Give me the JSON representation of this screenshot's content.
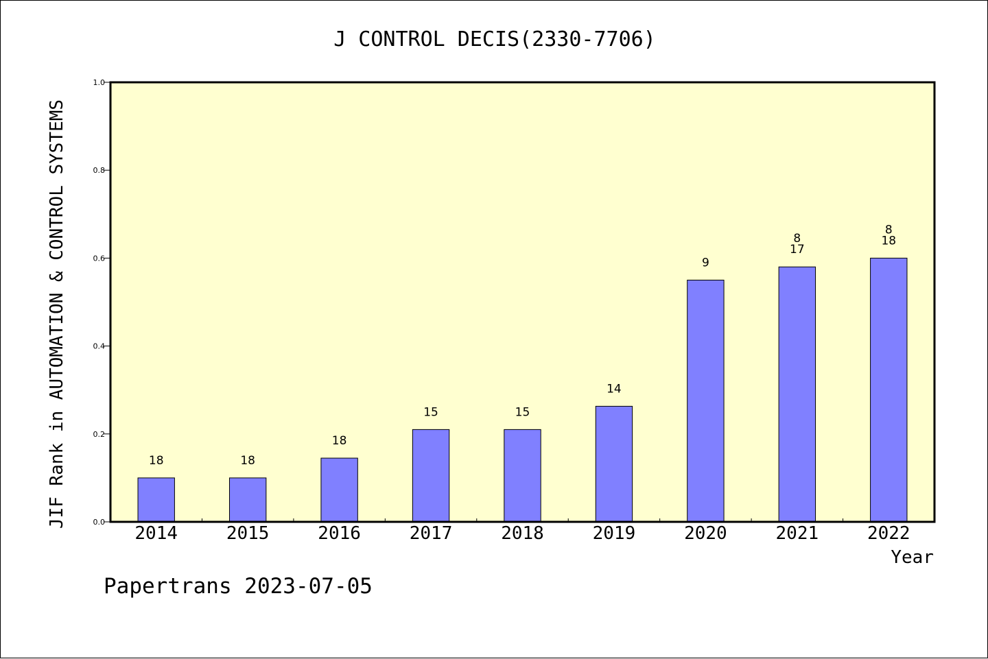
{
  "colors": {
    "plot_background": "#ffffd0",
    "bar_fill": "#8080ff",
    "bar_stroke": "#000000",
    "axis": "#000000"
  },
  "footer": "Papertrans 2023-07-05",
  "chart_data": {
    "type": "bar",
    "title": "J CONTROL DECIS(2330-7706)",
    "xlabel": "Year",
    "ylabel": "JIF Rank in AUTOMATION & CONTROL SYSTEMS",
    "categories": [
      "2014",
      "2015",
      "2016",
      "2017",
      "2018",
      "2019",
      "2020",
      "2021",
      "2022"
    ],
    "values": [
      0.1,
      0.1,
      0.145,
      0.21,
      0.21,
      0.263,
      0.55,
      0.58,
      0.6
    ],
    "bar_labels": [
      [
        "18"
      ],
      [
        "18"
      ],
      [
        "18"
      ],
      [
        "15"
      ],
      [
        "15"
      ],
      [
        "14"
      ],
      [
        "9"
      ],
      [
        "8",
        "17"
      ],
      [
        "8",
        "18"
      ]
    ],
    "ylim": [
      0.0,
      1.0
    ],
    "yticks": [
      "0.0",
      "0.2",
      "0.4",
      "0.6",
      "0.8",
      "1.0"
    ],
    "ytick_values": [
      0.0,
      0.2,
      0.4,
      0.6,
      0.8,
      1.0
    ],
    "grid": false,
    "legend": "none"
  }
}
